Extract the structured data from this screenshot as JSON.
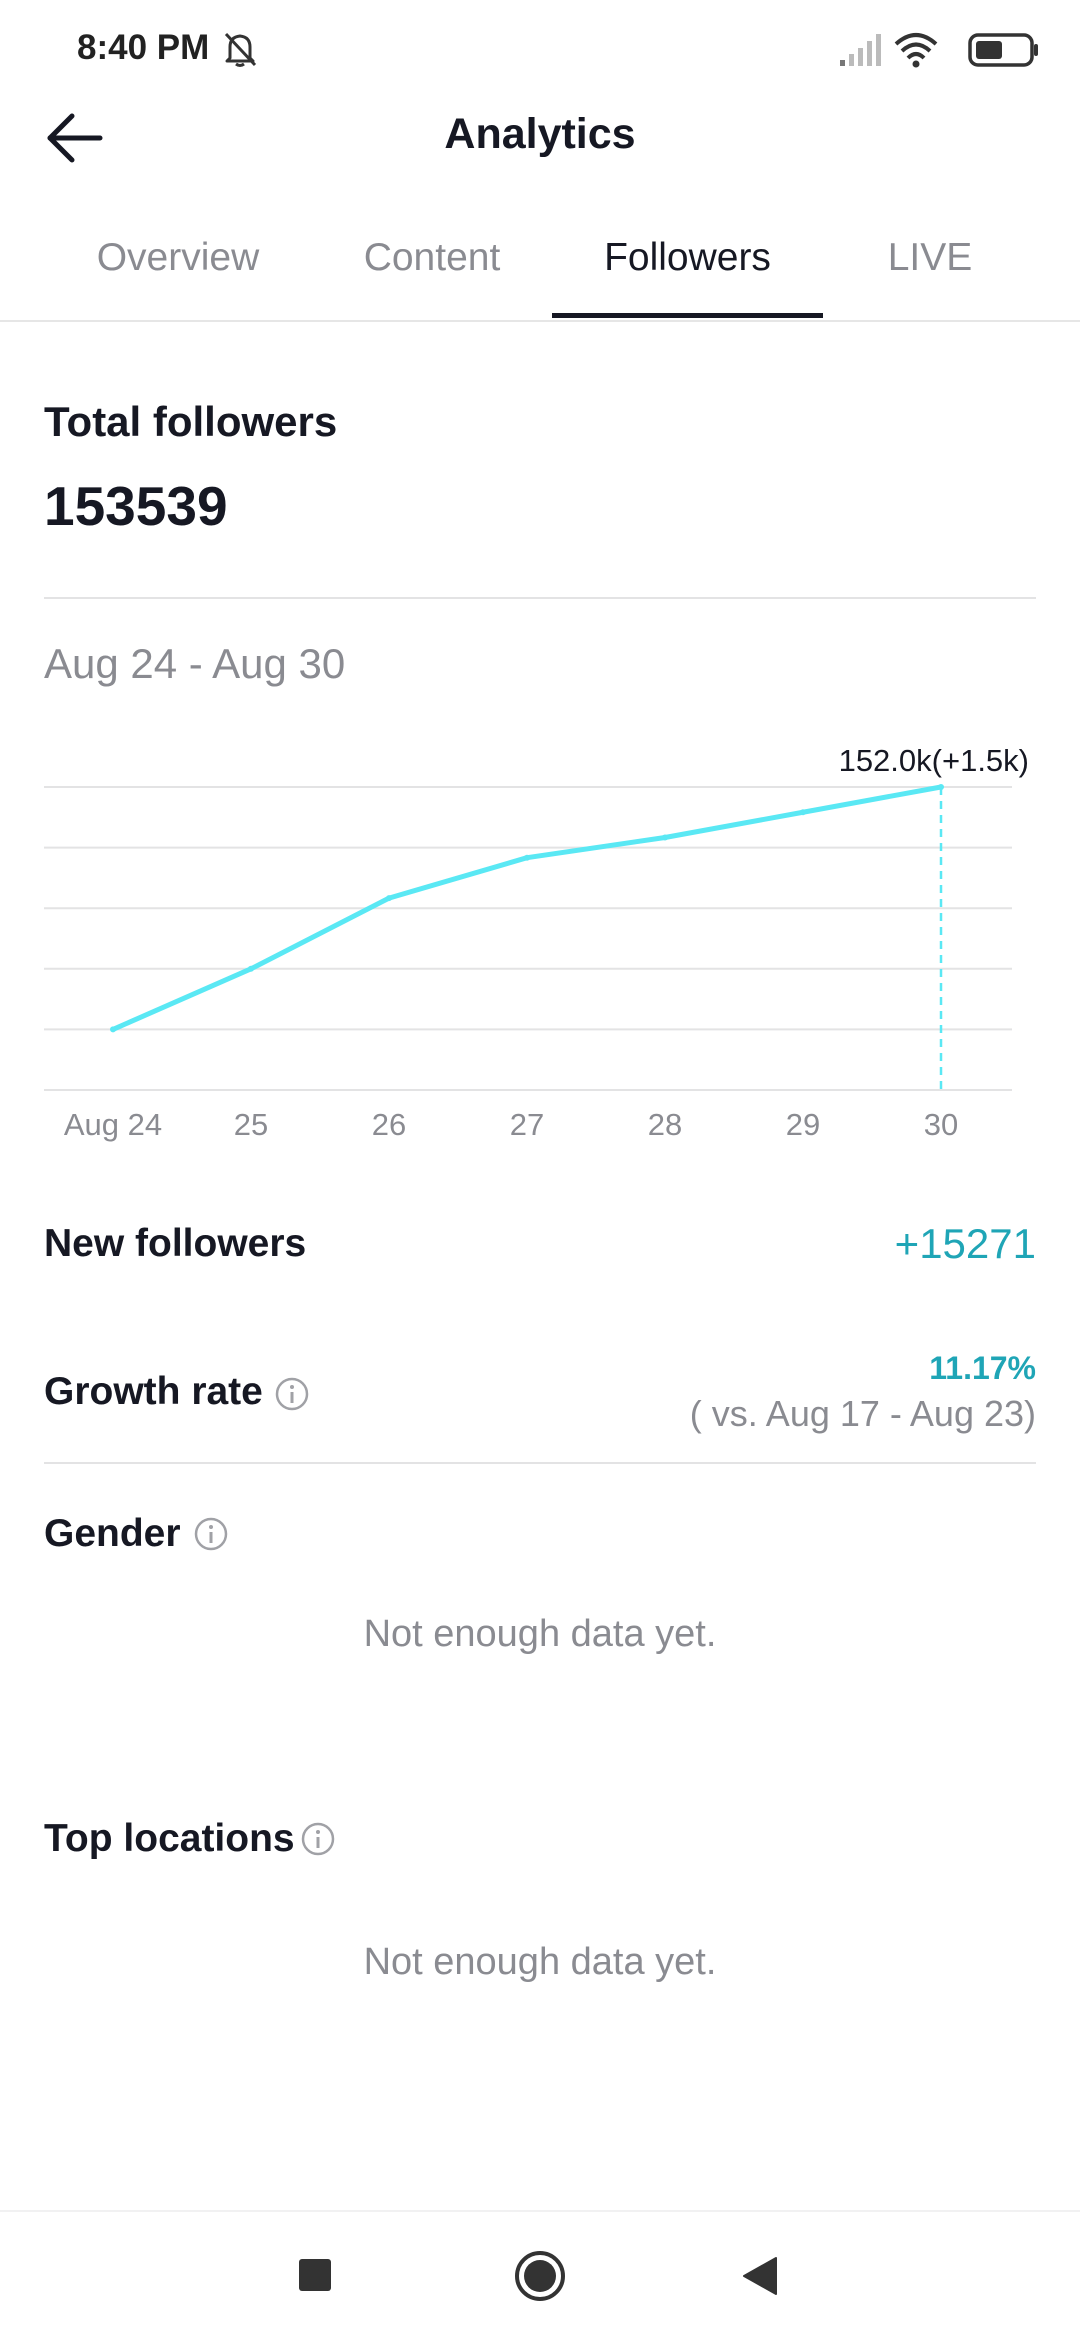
{
  "status_bar": {
    "time": "8:40 PM"
  },
  "header": {
    "title": "Analytics"
  },
  "tabs": [
    {
      "label": "Overview"
    },
    {
      "label": "Content"
    },
    {
      "label": "Followers"
    },
    {
      "label": "LIVE"
    }
  ],
  "total_followers": {
    "label": "Total followers",
    "value": "153539"
  },
  "date_range": "Aug 24 - Aug 30",
  "chart_data": {
    "type": "line",
    "x": [
      "Aug 24",
      "25",
      "26",
      "27",
      "28",
      "29",
      "30"
    ],
    "series": [
      {
        "values": [
          147.2,
          148.4,
          149.8,
          150.6,
          151.0,
          151.5,
          152.0
        ]
      }
    ],
    "ylim": [
      146.0,
      152.0
    ],
    "grid": true,
    "annotation": "152.0k(+1.5k)",
    "colors": {
      "line": "#5ae8f4",
      "grid": "#e3e3e4",
      "tick": "#8a8b91"
    }
  },
  "new_followers": {
    "label": "New followers",
    "value": "+15271"
  },
  "growth_rate": {
    "label": "Growth rate",
    "value": "11.17%",
    "compare": "( vs. Aug 17 - Aug 23)"
  },
  "gender": {
    "label": "Gender",
    "empty": "Not enough data yet."
  },
  "top_locations": {
    "label": "Top locations",
    "empty": "Not enough data yet."
  },
  "icons": {
    "notifications": "bell-off-icon",
    "signal": "signal-icon",
    "wifi": "wifi-icon",
    "battery": "battery-icon",
    "back": "arrow-left-icon",
    "info": "info-icon",
    "recents": "square-icon",
    "home": "circle-icon",
    "nav_back": "triangle-icon"
  },
  "colors": {
    "accent": "#1fa5b6",
    "chart_line": "#5ae8f4",
    "text_primary": "#161823",
    "text_secondary": "#8a8b91"
  }
}
